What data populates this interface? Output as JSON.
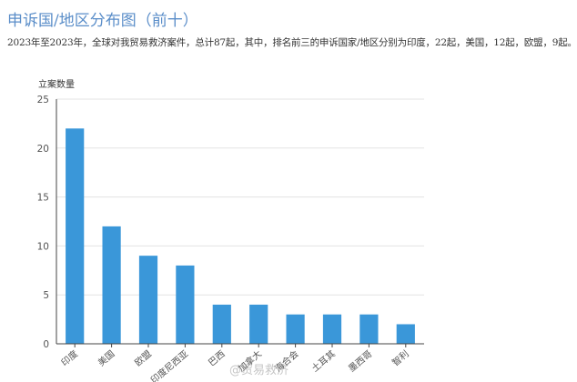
{
  "header": {
    "title": "申诉国/地区分布图（前十）",
    "description": "2023年至2023年，全球对我贸易救济案件，总计87起，其中，排名前三的申诉国家/地区分别为印度，22起，美国，12起，欧盟，9起。"
  },
  "chart_data": {
    "type": "bar",
    "ylabel": "立案数量",
    "xlabel": "",
    "categories": [
      "印度",
      "美国",
      "欧盟",
      "印度尼西亚",
      "巴西",
      "加拿大",
      "海合会",
      "土耳其",
      "墨西哥",
      "智利"
    ],
    "values": [
      22,
      12,
      9,
      8,
      4,
      4,
      3,
      3,
      3,
      2
    ],
    "ylim": [
      0,
      25
    ],
    "yticks": [
      0,
      5,
      10,
      15,
      20,
      25
    ],
    "grid": true,
    "bar_color": "#3a97d9"
  },
  "watermark": {
    "text": "@贸易救济"
  }
}
